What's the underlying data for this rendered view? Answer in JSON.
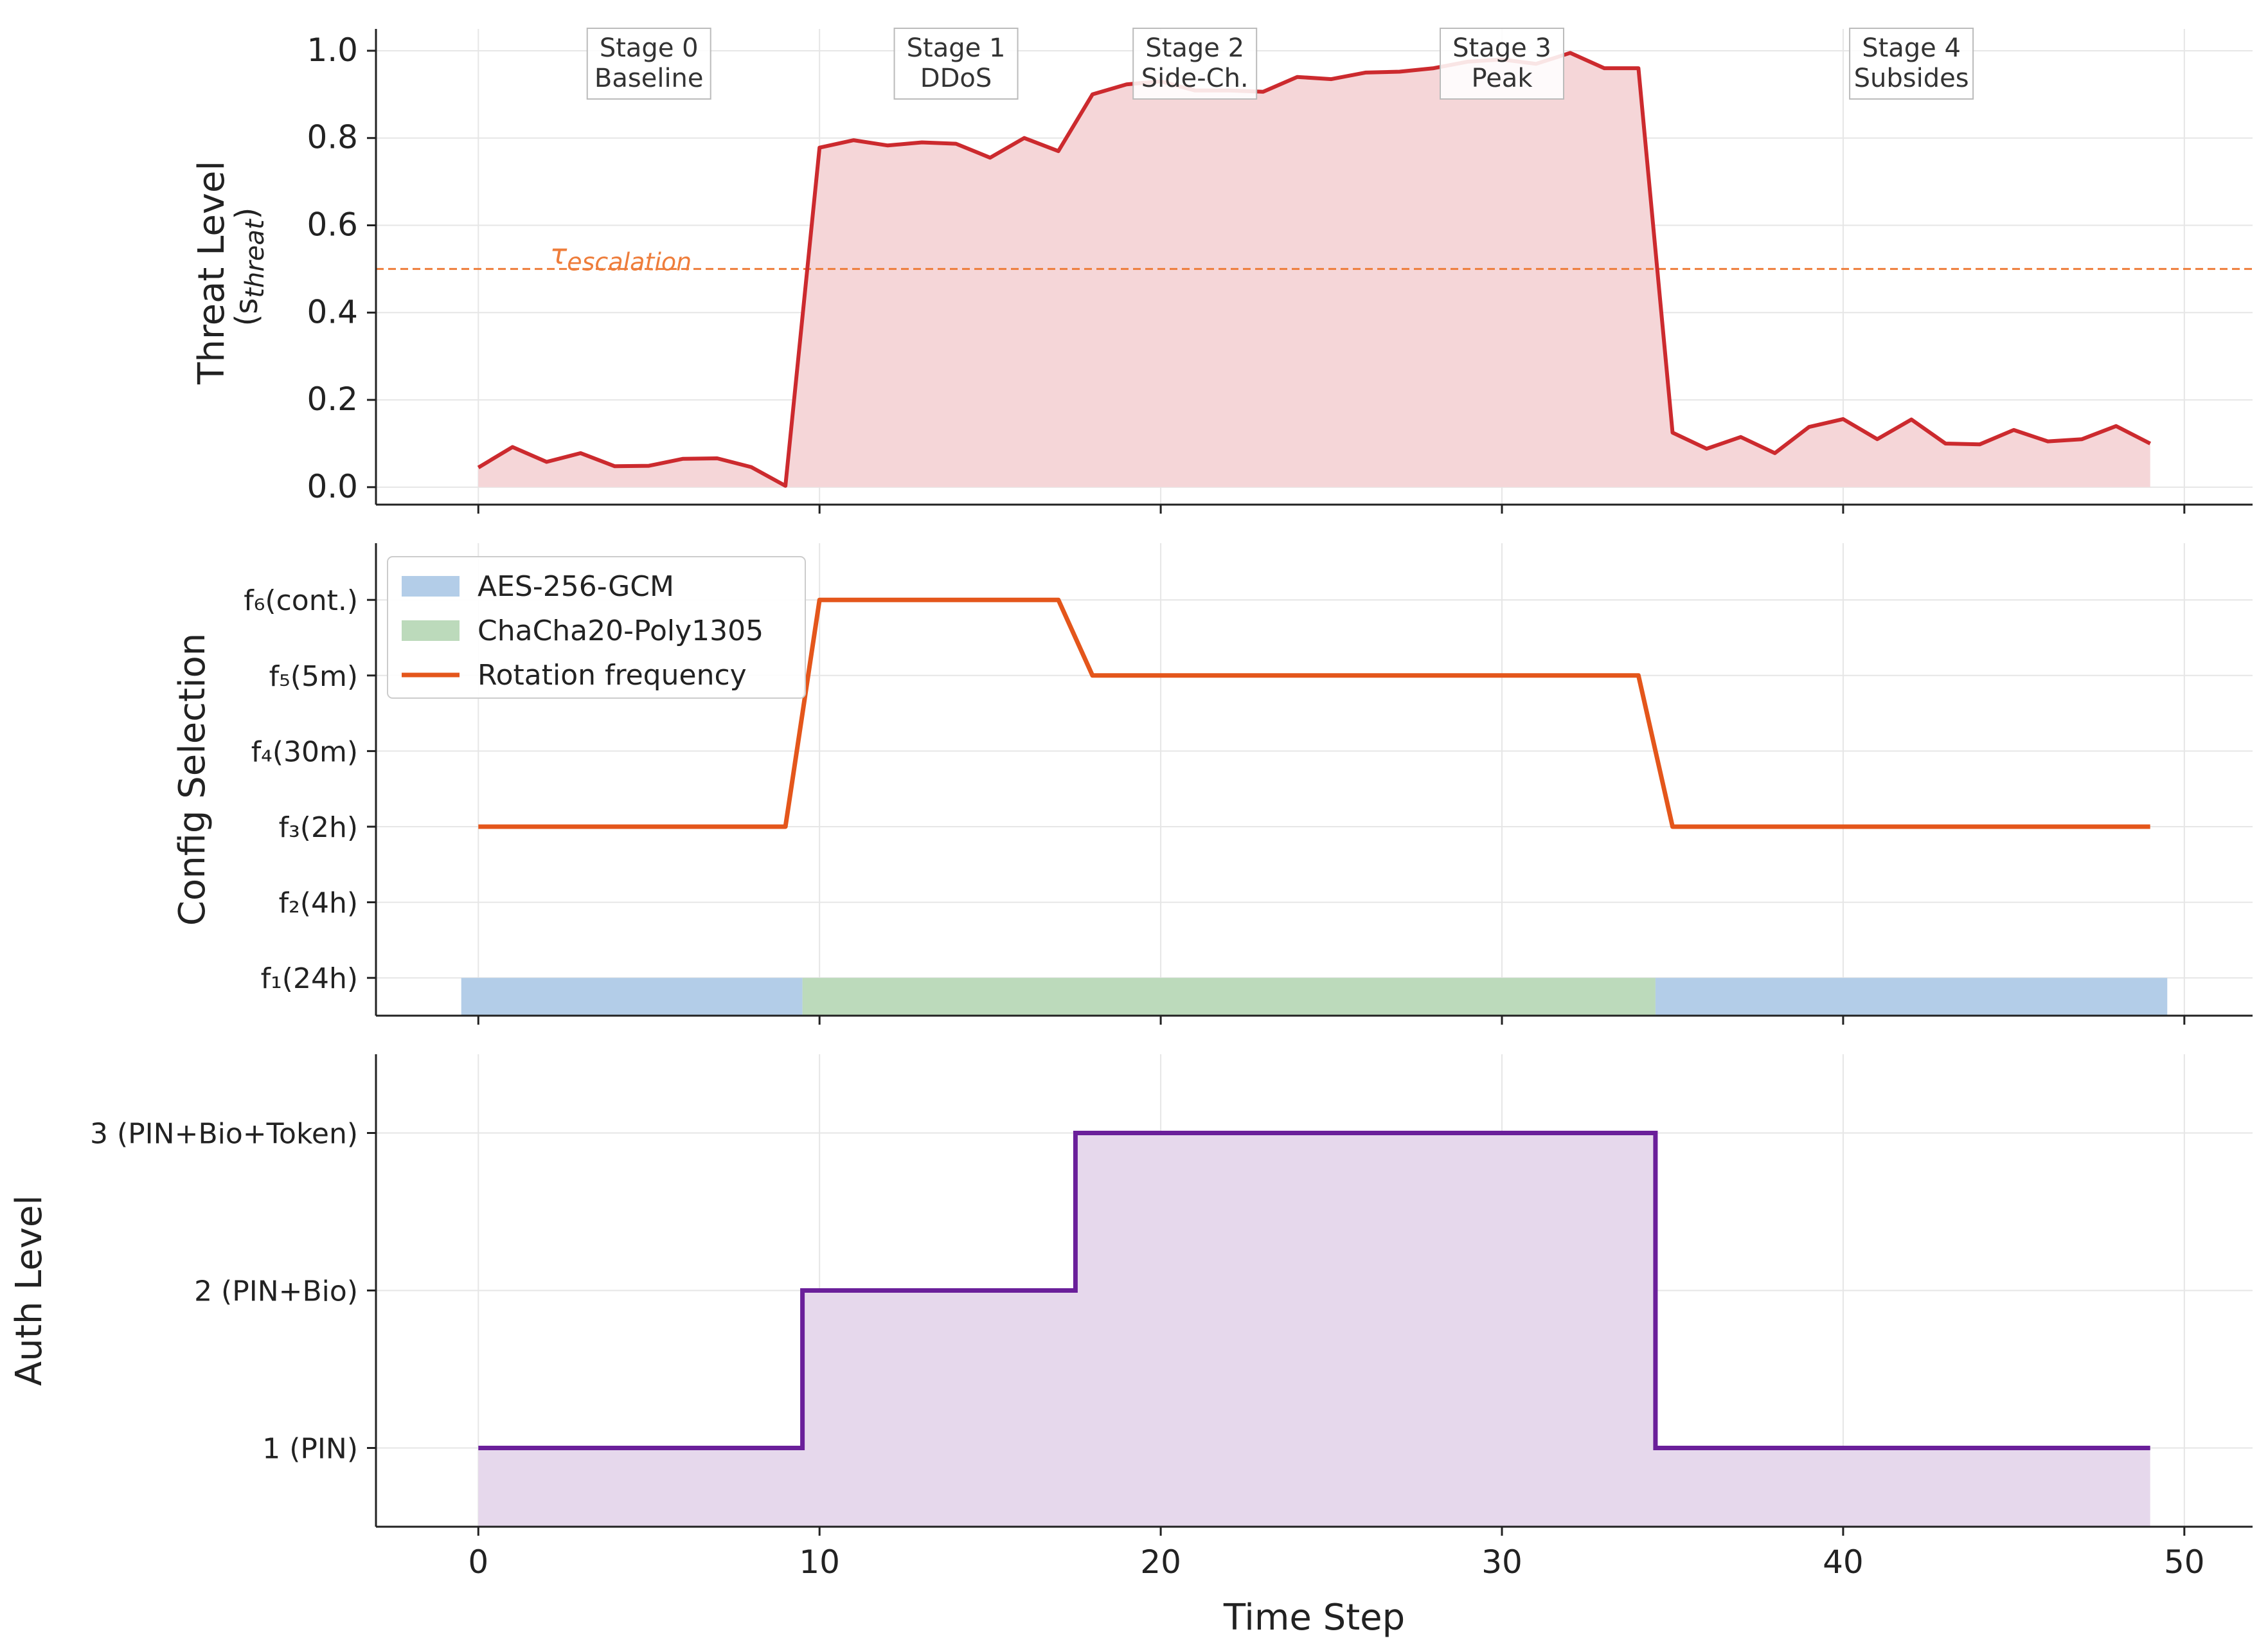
{
  "chart_data": [
    {
      "type": "area",
      "panel": "threat",
      "ylabel": "Threat Level",
      "ylabel_symbol": "(s",
      "ylabel_subscript": "threat",
      "ylabel_close": ")",
      "ylim": [
        -0.04,
        1.05
      ],
      "yticks": [
        "0.0",
        "0.2",
        "0.4",
        "0.6",
        "0.8",
        "1.0"
      ],
      "ytick_values": [
        0,
        0.2,
        0.4,
        0.6,
        0.8,
        1.0
      ],
      "xlim": [
        -3,
        52
      ],
      "xticks": [
        0,
        10,
        20,
        30,
        40,
        50
      ],
      "grid": true,
      "x": [
        0,
        1,
        2,
        3,
        4,
        5,
        6,
        7,
        8,
        9,
        10,
        11,
        12,
        13,
        14,
        15,
        16,
        17,
        18,
        19,
        20,
        21,
        22,
        23,
        24,
        25,
        26,
        27,
        28,
        29,
        30,
        31,
        32,
        33,
        34,
        35,
        36,
        37,
        38,
        39,
        40,
        41,
        42,
        43,
        44,
        45,
        46,
        47,
        48,
        49
      ],
      "series": [
        {
          "name": "",
          "color": "#cc2a2e",
          "fill": "#f5d6d8",
          "values": [
            0.045,
            0.092,
            0.058,
            0.078,
            0.048,
            0.049,
            0.065,
            0.066,
            0.046,
            0.003,
            0.778,
            0.795,
            0.783,
            0.79,
            0.787,
            0.755,
            0.8,
            0.77,
            0.9,
            0.923,
            0.93,
            0.909,
            0.909,
            0.906,
            0.94,
            0.935,
            0.95,
            0.952,
            0.96,
            0.975,
            0.98,
            0.97,
            0.995,
            0.96,
            0.96,
            0.125,
            0.088,
            0.115,
            0.078,
            0.138,
            0.156,
            0.11,
            0.155,
            0.1,
            0.098,
            0.131,
            0.105,
            0.11,
            0.14,
            0.1
          ]
        }
      ],
      "threshold": {
        "value": 0.5,
        "label": "τ",
        "label_subscript": "escalation",
        "color": "#ee7d3b"
      },
      "stages": [
        {
          "x": 5,
          "line1": "Stage 0",
          "line2": "Baseline"
        },
        {
          "x": 14,
          "line1": "Stage 1",
          "line2": "DDoS"
        },
        {
          "x": 21,
          "line1": "Stage 2",
          "line2": "Side-Ch."
        },
        {
          "x": 30,
          "line1": "Stage 3",
          "line2": "Peak"
        },
        {
          "x": 42,
          "line1": "Stage 4",
          "line2": "Subsides"
        }
      ]
    },
    {
      "type": "line",
      "panel": "config",
      "ylabel": "Config Selection",
      "ylim": [
        0.5,
        6.75
      ],
      "ytick_values": [
        1,
        2,
        3,
        4,
        5,
        6
      ],
      "yticks": [
        "f₁(24h)",
        "f₂(4h)",
        "f₃(2h)",
        "f₄(30m)",
        "f₅(5m)",
        "f₆(cont.)"
      ],
      "xlim": [
        -3,
        52
      ],
      "xticks": [
        0,
        10,
        20,
        30,
        40,
        50
      ],
      "grid": true,
      "legend_position": "top-left",
      "cipher_bands": [
        {
          "name": "AES-256-GCM",
          "color": "#b3cde8",
          "x_start": -0.5,
          "x_end": 9.5
        },
        {
          "name": "ChaCha20-Poly1305",
          "color": "#bcdabb",
          "x_start": 9.5,
          "x_end": 34.5
        },
        {
          "name": "AES-256-GCM",
          "color": "#b3cde8",
          "x_start": 34.5,
          "x_end": 49.5
        }
      ],
      "band_ylim": [
        0.5,
        1.0
      ],
      "series": [
        {
          "name": "Rotation frequency",
          "color": "#e4561b",
          "x": [
            0,
            9,
            10,
            17,
            18,
            34,
            35,
            49
          ],
          "values": [
            3,
            3,
            6,
            6,
            5,
            5,
            3,
            3
          ]
        }
      ],
      "legend": [
        {
          "label": "AES-256-GCM",
          "kind": "patch",
          "color": "#b3cde8"
        },
        {
          "label": "ChaCha20-Poly1305",
          "kind": "patch",
          "color": "#bcdabb"
        },
        {
          "label": "Rotation frequency",
          "kind": "line",
          "color": "#e4561b"
        }
      ]
    },
    {
      "type": "area",
      "panel": "auth",
      "ylabel": "Auth Level",
      "xlabel": "Time Step",
      "ylim": [
        0.5,
        3.5
      ],
      "ytick_values": [
        1,
        2,
        3
      ],
      "yticks": [
        "1 (PIN)",
        "2 (PIN+Bio)",
        "3 (PIN+Bio+Token)"
      ],
      "xlim": [
        -3,
        52
      ],
      "xticks": [
        0,
        10,
        20,
        30,
        40,
        50
      ],
      "xtick_labels": [
        "0",
        "10",
        "20",
        "30",
        "40",
        "50"
      ],
      "grid": true,
      "series": [
        {
          "name": "",
          "color": "#6a1f9a",
          "fill": "#e6d8ec",
          "x": [
            0,
            9.5,
            9.5,
            17.5,
            17.5,
            34.5,
            34.5,
            49
          ],
          "values": [
            1,
            1,
            2,
            2,
            3,
            3,
            1,
            1
          ]
        }
      ]
    }
  ]
}
